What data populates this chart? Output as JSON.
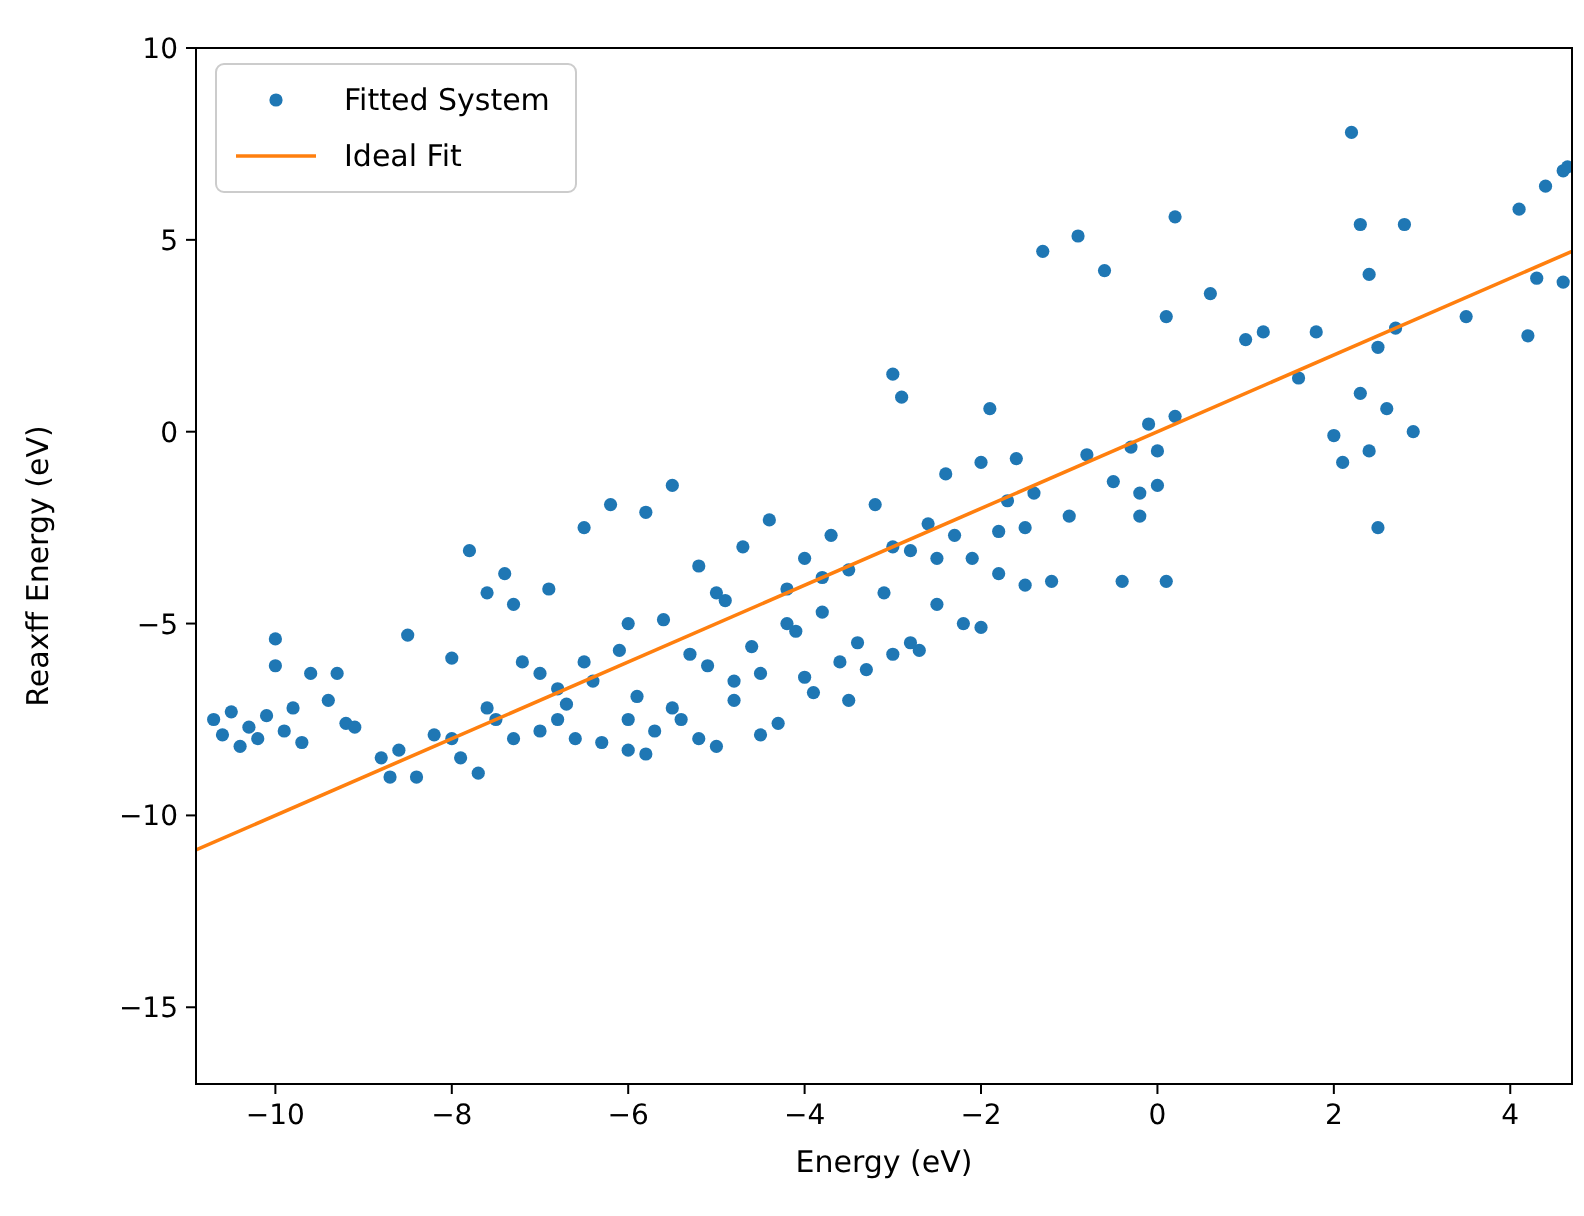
{
  "chart_data": {
    "type": "scatter",
    "xlabel": "Energy (eV)",
    "ylabel": "Reaxff Energy (eV)",
    "xlim": [
      -10.9,
      4.7
    ],
    "ylim": [
      -17,
      10
    ],
    "xticks": [
      -10,
      -8,
      -6,
      -4,
      -2,
      0,
      2,
      4
    ],
    "yticks": [
      -15,
      -10,
      -5,
      0,
      5,
      10
    ],
    "grid": false,
    "legend": "top left",
    "series": [
      {
        "name": "Fitted System",
        "marker": "circle",
        "color": "#1f77b4",
        "x": [
          -10.7,
          -10.6,
          -10.5,
          -10.4,
          -10.3,
          -10.2,
          -10.1,
          -10.0,
          -10.0,
          -9.9,
          -9.8,
          -9.7,
          -9.6,
          -9.4,
          -9.3,
          -9.2,
          -9.1,
          -8.8,
          -8.7,
          -8.6,
          -8.5,
          -8.4,
          -8.2,
          -8.0,
          -7.9,
          -7.8,
          -7.7,
          -7.6,
          -7.5,
          -7.4,
          -7.3,
          -7.2,
          -7.0,
          -6.9,
          -6.8,
          -6.7,
          -6.5,
          -6.4,
          -6.3,
          -6.2,
          -6.1,
          -6.0,
          -5.9,
          -5.8,
          -5.7,
          -5.6,
          -5.5,
          -5.4,
          -5.3,
          -5.2,
          -5.1,
          -5.0,
          -4.9,
          -4.8,
          -4.7,
          -4.6,
          -4.5,
          -4.4,
          -4.3,
          -4.2,
          -4.1,
          -4.0,
          -3.9,
          -3.8,
          -3.7,
          -3.6,
          -3.5,
          -3.4,
          -3.2,
          -3.1,
          -3.0,
          -2.9,
          -2.8,
          -2.7,
          -2.6,
          -2.5,
          -2.4,
          -2.3,
          -2.2,
          -2.1,
          -2.0,
          -1.9,
          -1.8,
          -1.7,
          -1.6,
          -1.5,
          -1.4,
          -1.3,
          -1.2,
          -1.0,
          -0.9,
          -0.8,
          -0.6,
          -0.5,
          -0.4,
          -0.3,
          -0.2,
          0.0,
          0.1,
          0.1,
          0.2,
          0.2,
          0.0,
          -0.1,
          -0.2,
          0.6,
          1.0,
          1.2,
          1.6,
          1.8,
          2.0,
          2.1,
          2.2,
          2.3,
          2.4,
          2.5,
          2.5,
          2.6,
          2.7,
          2.8,
          2.4,
          2.3,
          2.9,
          3.5,
          4.1,
          4.2,
          4.3,
          4.4,
          4.6,
          4.65,
          4.6,
          -6.6,
          -6.0,
          -5.8,
          -5.5,
          -5.2,
          -4.8,
          -4.5,
          -4.0,
          -3.5,
          -3.3,
          -3.0,
          -2.8,
          -2.0,
          -1.8,
          -1.5,
          -6.8,
          -7.0,
          -7.6,
          -8.0,
          -4.2,
          -3.8,
          -3.0,
          -2.5,
          -5.0,
          -6.0,
          -6.5,
          -7.3
        ],
        "values": [
          -7.5,
          -7.9,
          -7.3,
          -8.2,
          -7.7,
          -8.0,
          -7.4,
          -5.4,
          -6.1,
          -7.8,
          -7.2,
          -8.1,
          -6.3,
          -7.0,
          -6.3,
          -7.6,
          -7.7,
          -8.5,
          -9.0,
          -8.3,
          -5.3,
          -9.0,
          -7.9,
          -5.9,
          -8.5,
          -3.1,
          -8.9,
          -4.2,
          -7.5,
          -3.7,
          -8.0,
          -6.0,
          -7.8,
          -4.1,
          -6.7,
          -7.1,
          -2.5,
          -6.5,
          -8.1,
          -1.9,
          -5.7,
          -8.3,
          -6.9,
          -2.1,
          -7.8,
          -4.9,
          -1.4,
          -7.5,
          -5.8,
          -3.5,
          -6.1,
          -8.2,
          -4.4,
          -7.0,
          -3.0,
          -5.6,
          -6.3,
          -2.3,
          -7.6,
          -4.1,
          -5.2,
          -3.3,
          -6.8,
          -4.7,
          -2.7,
          -6.0,
          -3.6,
          -5.5,
          -1.9,
          -4.2,
          1.5,
          0.9,
          -3.1,
          -5.7,
          -2.4,
          -4.5,
          -1.1,
          -2.7,
          -5.0,
          -3.3,
          -0.8,
          0.6,
          -2.6,
          -1.8,
          -0.7,
          -2.5,
          -1.6,
          4.7,
          -3.9,
          -2.2,
          5.1,
          -0.6,
          4.2,
          -1.3,
          -3.9,
          -0.4,
          -1.6,
          -0.5,
          3.0,
          -3.9,
          5.6,
          0.4,
          -1.4,
          0.2,
          -2.2,
          3.6,
          2.4,
          2.6,
          1.4,
          2.6,
          -0.1,
          -0.8,
          7.8,
          1.0,
          -0.5,
          -2.5,
          2.2,
          0.6,
          2.7,
          5.4,
          4.1,
          5.4,
          0.0,
          3.0,
          5.8,
          2.5,
          4.0,
          6.4,
          6.8,
          6.9,
          3.9,
          -8.0,
          -7.5,
          -8.4,
          -7.2,
          -8.0,
          -6.5,
          -7.9,
          -6.4,
          -7.0,
          -6.2,
          -5.8,
          -5.5,
          -5.1,
          -3.7,
          -4.0,
          -7.5,
          -6.3,
          -7.2,
          -8.0,
          -5.0,
          -3.8,
          -3.0,
          -3.3,
          -4.2,
          -5.0,
          -6.0,
          -4.5
        ]
      },
      {
        "name": "Ideal Fit",
        "type": "line",
        "marker": "none",
        "line_style": "solid",
        "color": "#ff7f0e",
        "x": [
          -10.9,
          4.7
        ],
        "values": [
          -10.9,
          4.7
        ]
      }
    ]
  }
}
